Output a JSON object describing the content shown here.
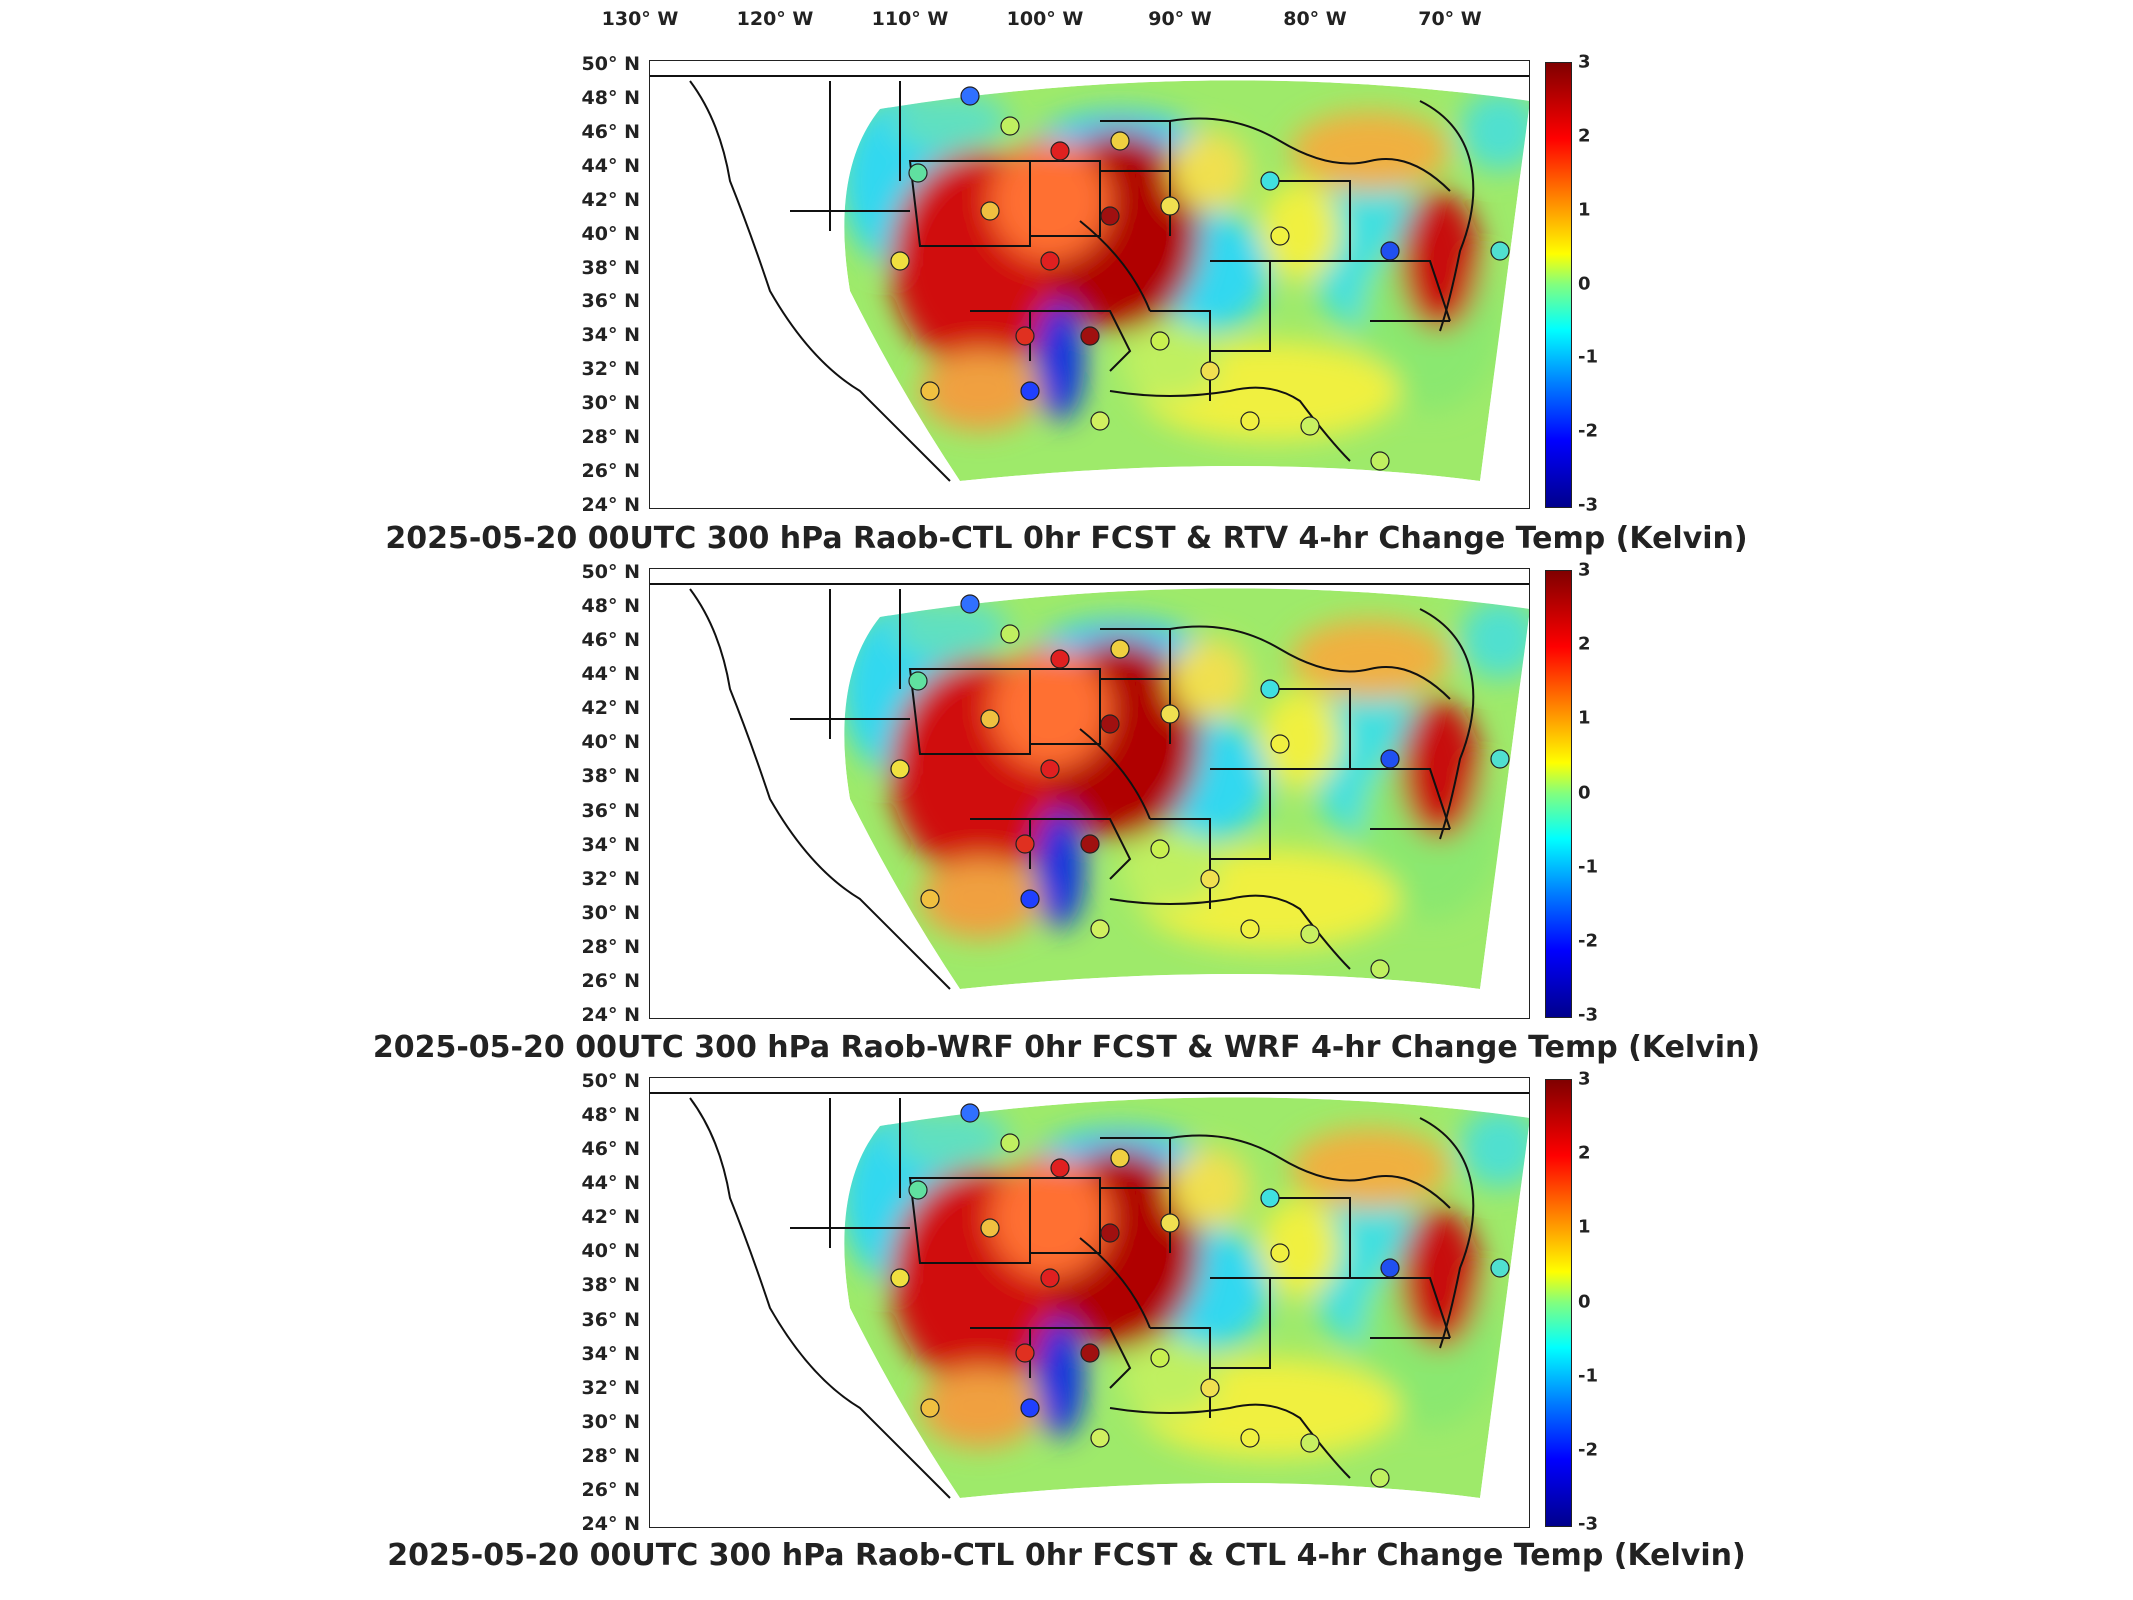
{
  "lon_labels": [
    "130° W",
    "120° W",
    "110° W",
    "100° W",
    "90° W",
    "80° W",
    "70° W"
  ],
  "lat_labels": [
    "50° N",
    "48° N",
    "46° N",
    "44° N",
    "42° N",
    "40° N",
    "38° N",
    "36° N",
    "34° N",
    "32° N",
    "30° N",
    "28° N",
    "26° N",
    "24° N"
  ],
  "colorbar_ticks": [
    "3",
    "2",
    "1",
    "0",
    "-1",
    "-2",
    "-3"
  ],
  "colorbar_range": [
    -3,
    3
  ],
  "colormap": [
    "#00008c",
    "#0000ff",
    "#0080ff",
    "#00ffff",
    "#80ff80",
    "#ffff00",
    "#ff8000",
    "#ff0000",
    "#800000"
  ],
  "panels": [
    {
      "title": "2025-05-20 00UTC 300 hPa Raob-CTL 0hr FCST & RTV 4-hr Change Temp (Kelvin)"
    },
    {
      "title": "2025-05-20 00UTC 300 hPa Raob-WRF 0hr FCST & WRF 4-hr Change Temp (Kelvin)"
    },
    {
      "title": "2025-05-20 00UTC 300 hPa Raob-CTL 0hr FCST & CTL 4-hr Change Temp (Kelvin)"
    }
  ]
}
